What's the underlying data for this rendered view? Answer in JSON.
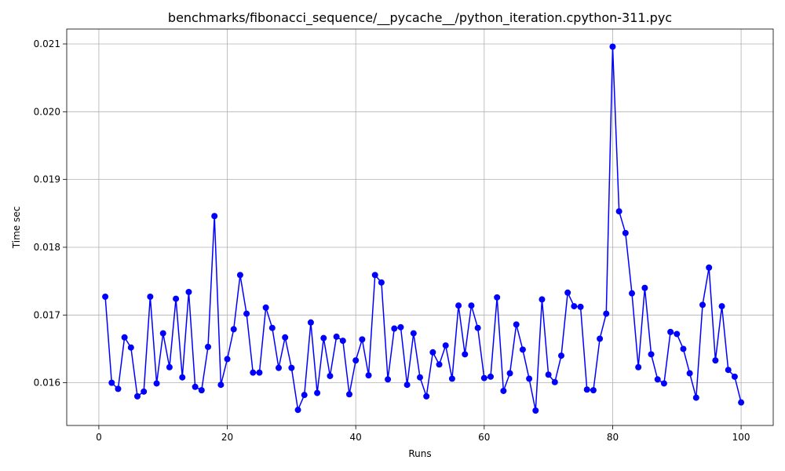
{
  "chart_data": {
    "type": "line",
    "title": "benchmarks/fibonacci_sequence/__pycache__/python_iteration.cpython-311.pyc",
    "xlabel": "Runs",
    "ylabel": "Time sec",
    "xlim": [
      -5,
      105
    ],
    "ylim": [
      0.01537,
      0.02122
    ],
    "xticks": [
      0,
      20,
      40,
      60,
      80,
      100
    ],
    "yticks": [
      0.016,
      0.017,
      0.018,
      0.019,
      0.02,
      0.021
    ],
    "xtick_labels": [
      "0",
      "20",
      "40",
      "60",
      "80",
      "100"
    ],
    "ytick_labels": [
      "0.016",
      "0.017",
      "0.018",
      "0.019",
      "0.020",
      "0.021"
    ],
    "grid": true,
    "color": "#0000ff",
    "x": [
      1,
      2,
      3,
      4,
      5,
      6,
      7,
      8,
      9,
      10,
      11,
      12,
      13,
      14,
      15,
      16,
      17,
      18,
      19,
      20,
      21,
      22,
      23,
      24,
      25,
      26,
      27,
      28,
      29,
      30,
      31,
      32,
      33,
      34,
      35,
      36,
      37,
      38,
      39,
      40,
      41,
      42,
      43,
      44,
      45,
      46,
      47,
      48,
      49,
      50,
      51,
      52,
      53,
      54,
      55,
      56,
      57,
      58,
      59,
      60,
      61,
      62,
      63,
      64,
      65,
      66,
      67,
      68,
      69,
      70,
      71,
      72,
      73,
      74,
      75,
      76,
      77,
      78,
      79,
      80,
      81,
      82,
      83,
      84,
      85,
      86,
      87,
      88,
      89,
      90,
      91,
      92,
      93,
      94,
      95,
      96,
      97,
      98,
      99,
      100
    ],
    "y": [
      0.01727,
      0.016,
      0.01591,
      0.01667,
      0.01652,
      0.0158,
      0.01587,
      0.01727,
      0.01599,
      0.01673,
      0.01623,
      0.01724,
      0.01608,
      0.01734,
      0.01594,
      0.01589,
      0.01653,
      0.01846,
      0.01597,
      0.01635,
      0.01679,
      0.01759,
      0.01702,
      0.01615,
      0.01615,
      0.01711,
      0.01681,
      0.01622,
      0.01667,
      0.01622,
      0.0156,
      0.01582,
      0.01689,
      0.01585,
      0.01666,
      0.0161,
      0.01668,
      0.01662,
      0.01583,
      0.01633,
      0.01664,
      0.01611,
      0.01759,
      0.01748,
      0.01605,
      0.0168,
      0.01682,
      0.01597,
      0.01673,
      0.01608,
      0.0158,
      0.01645,
      0.01627,
      0.01655,
      0.01606,
      0.01714,
      0.01642,
      0.01714,
      0.01681,
      0.01607,
      0.01609,
      0.01726,
      0.01588,
      0.01614,
      0.01686,
      0.01649,
      0.01606,
      0.01559,
      0.01723,
      0.01612,
      0.01601,
      0.0164,
      0.01733,
      0.01713,
      0.01712,
      0.0159,
      0.01589,
      0.01665,
      0.01702,
      0.02096,
      0.01853,
      0.01821,
      0.01732,
      0.01623,
      0.0174,
      0.01642,
      0.01605,
      0.01599,
      0.01675,
      0.01672,
      0.0165,
      0.01614,
      0.01578,
      0.01715,
      0.0177,
      0.01633,
      0.01713,
      0.01619,
      0.01609,
      0.01571
    ]
  }
}
